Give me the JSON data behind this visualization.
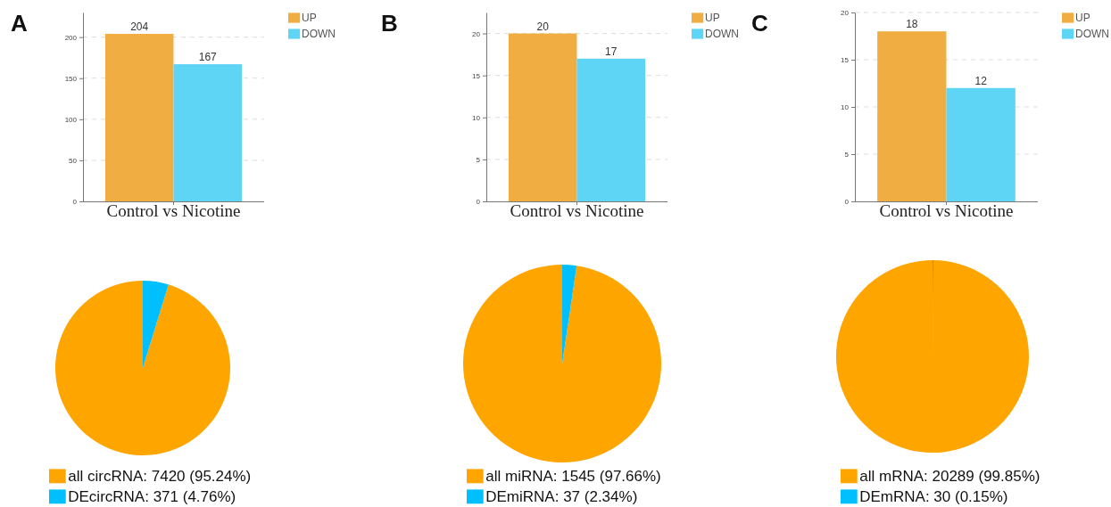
{
  "chart_data": [
    {
      "type": "bar",
      "title": "A",
      "categories": [
        "Control vs Nicotine"
      ],
      "series": [
        {
          "name": "UP",
          "color": "#efad42",
          "values": [
            204
          ]
        },
        {
          "name": "DOWN",
          "color": "#5fd5f5",
          "values": [
            167
          ]
        }
      ],
      "ylim": [
        0,
        230
      ],
      "yticks": [
        0,
        50,
        100,
        150,
        200
      ],
      "grid": "y",
      "legend": "top right",
      "data_labels": true
    },
    {
      "type": "bar",
      "title": "B",
      "categories": [
        "Control vs Nicotine"
      ],
      "series": [
        {
          "name": "UP",
          "color": "#efad42",
          "values": [
            20
          ]
        },
        {
          "name": "DOWN",
          "color": "#5fd5f5",
          "values": [
            17
          ]
        }
      ],
      "ylim": [
        0,
        22.5
      ],
      "yticks": [
        0,
        5,
        10,
        15,
        20
      ],
      "grid": "y",
      "legend": "top right",
      "data_labels": true
    },
    {
      "type": "bar",
      "title": "C",
      "categories": [
        "Control vs Nicotine"
      ],
      "series": [
        {
          "name": "UP",
          "color": "#efad42",
          "values": [
            18
          ]
        },
        {
          "name": "DOWN",
          "color": "#5fd5f5",
          "values": [
            12
          ]
        }
      ],
      "ylim": [
        0,
        20
      ],
      "yticks": [
        0,
        5,
        10,
        15,
        20
      ],
      "grid": "y",
      "legend": "top right",
      "data_labels": true
    },
    {
      "type": "pie",
      "categories": [
        "all circRNA: 7420 (95.24%)",
        "DEcircRNA: 371 (4.76%)"
      ],
      "values": [
        7420,
        371
      ],
      "colors": [
        "#ffa500",
        "#00bfff"
      ],
      "legend": "bottom"
    },
    {
      "type": "pie",
      "categories": [
        "all miRNA: 1545 (97.66%)",
        "DEmiRNA: 37 (2.34%)"
      ],
      "values": [
        1545,
        37
      ],
      "colors": [
        "#ffa500",
        "#00bfff"
      ],
      "legend": "bottom"
    },
    {
      "type": "pie",
      "categories": [
        "all mRNA: 20289 (99.85%)",
        "DEmRNA: 30 (0.15%)"
      ],
      "values": [
        20289,
        30
      ],
      "colors": [
        "#ffa500",
        "#00bfff"
      ],
      "legend": "bottom"
    }
  ]
}
